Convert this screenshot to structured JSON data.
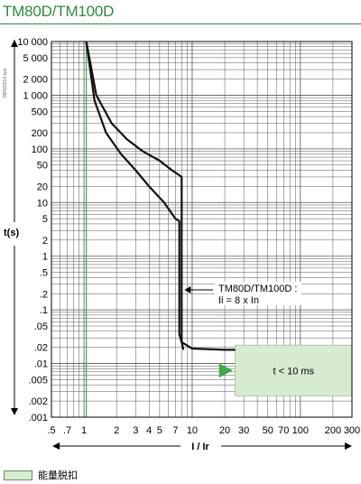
{
  "title": "TM80D/TM100D",
  "side_code": "DB422013.eps",
  "legend": {
    "label": "能量脱扣",
    "color": "#d6ebcf"
  },
  "chart_data": {
    "type": "line",
    "title": "TM80D/TM100D",
    "xlabel": "I / Ir",
    "ylabel": "t(s)",
    "x_scale": "log",
    "y_scale": "log",
    "xlim": [
      0.5,
      300
    ],
    "ylim": [
      0.001,
      10000
    ],
    "x_ticks": [
      0.5,
      0.7,
      1,
      2,
      3,
      4,
      5,
      7,
      10,
      20,
      30,
      50,
      70,
      100,
      200,
      300
    ],
    "x_tick_labels": [
      ".5",
      ".7",
      "1",
      "2",
      "3",
      "4",
      "5",
      "7",
      "10",
      "20",
      "30",
      "50",
      "70",
      "100",
      "200",
      "300"
    ],
    "y_ticks": [
      10000,
      5000,
      2000,
      1000,
      500,
      200,
      100,
      50,
      20,
      10,
      5,
      2,
      1,
      0.5,
      0.2,
      0.1,
      0.05,
      0.02,
      0.01,
      0.005,
      0.002,
      0.001
    ],
    "y_tick_labels": [
      "10 000",
      "5 000",
      "2 000",
      "1 000",
      "500",
      "200",
      "100",
      "50",
      "20",
      "10",
      "5",
      "2",
      "1",
      ".5",
      ".2",
      ".1",
      ".05",
      ".02",
      ".01",
      ".005",
      ".002",
      ".001"
    ],
    "reference_line_x": 1.05,
    "series": [
      {
        "values": [
          [
            1.05,
            10000
          ],
          [
            1.12,
            5000
          ],
          [
            1.3,
            1000
          ],
          [
            1.8,
            300
          ],
          [
            2.5,
            150
          ],
          [
            3.5,
            90
          ],
          [
            5,
            60
          ],
          [
            6.5,
            40
          ],
          [
            8,
            30
          ],
          [
            8,
            0.025
          ],
          [
            8.3,
            0.018
          ]
        ]
      },
      {
        "values": [
          [
            1.05,
            10000
          ],
          [
            1.25,
            800
          ],
          [
            1.6,
            200
          ],
          [
            2.2,
            80
          ],
          [
            3,
            40
          ],
          [
            4,
            20
          ],
          [
            5.5,
            10
          ],
          [
            7,
            5
          ],
          [
            7.6,
            4.5
          ],
          [
            7.6,
            0.035
          ],
          [
            8,
            0.025
          ],
          [
            10,
            0.019
          ],
          [
            20,
            0.018
          ],
          [
            25,
            0.018
          ]
        ]
      }
    ],
    "annotations": [
      {
        "text": "TM80D/TM100D :",
        "x": 8,
        "y": 0.18
      },
      {
        "text": "Ii = 8 x In",
        "x": 8,
        "y": 0.18
      },
      {
        "text": "t < 10 ms",
        "x": 60,
        "y": 0.008
      }
    ],
    "shaded_region": {
      "x": [
        25,
        300
      ],
      "y": [
        0.0025,
        0.022
      ],
      "color": "#d6ebcf"
    },
    "grid": true
  }
}
